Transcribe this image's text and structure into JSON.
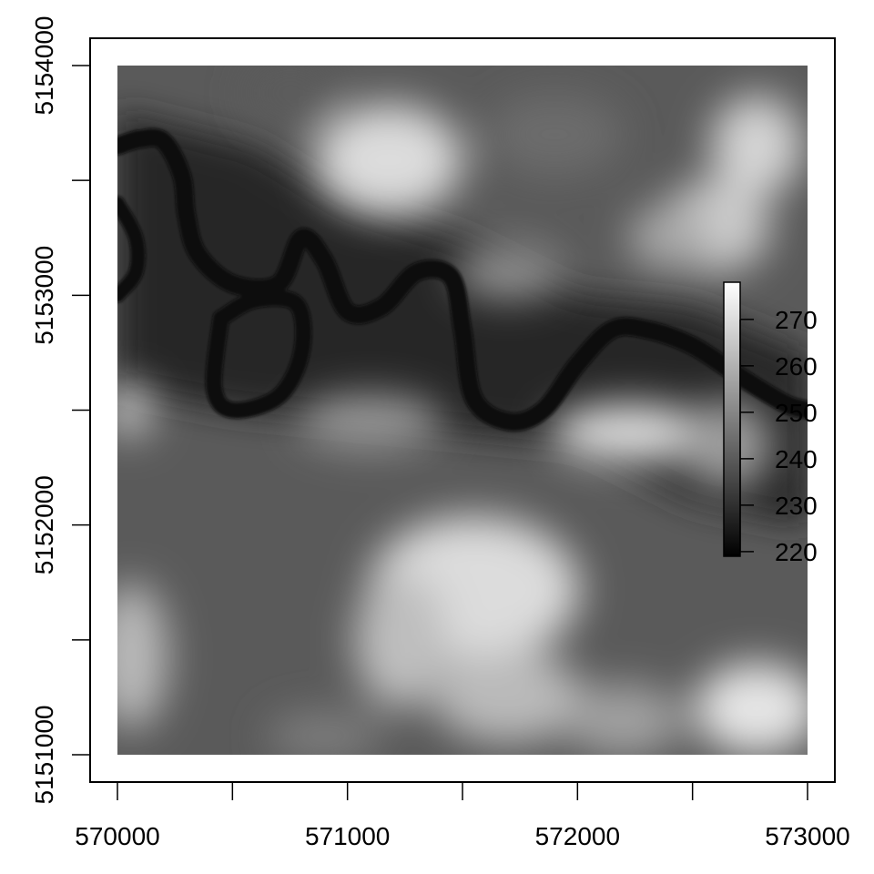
{
  "chart_data": {
    "type": "heatmap",
    "title": "",
    "xlabel": "",
    "ylabel": "",
    "xlim": [
      570000,
      573000
    ],
    "ylim": [
      5151000,
      5154000
    ],
    "x_ticks": [
      570000,
      570500,
      571000,
      571500,
      572000,
      572500,
      573000
    ],
    "x_tick_labels": [
      "570000",
      "",
      "571000",
      "",
      "572000",
      "",
      "573000"
    ],
    "y_ticks": [
      5151000,
      5151500,
      5152000,
      5152500,
      5153000,
      5153500,
      5154000
    ],
    "y_tick_labels": [
      "5151000",
      "",
      "5152000",
      "",
      "5153000",
      "",
      "5154000"
    ],
    "colorbar": {
      "range": [
        219,
        278
      ],
      "ticks": [
        220,
        230,
        240,
        250,
        260,
        270
      ],
      "tick_labels": [
        "220",
        "230",
        "240",
        "250",
        "260",
        "270"
      ],
      "low_color": "#000000",
      "high_color": "#ffffff"
    },
    "grid": false,
    "elevation_features": {
      "river_path": [
        [
          570000,
          5153650
        ],
        [
          570100,
          5153680
        ],
        [
          570200,
          5153670
        ],
        [
          570280,
          5153520
        ],
        [
          570300,
          5153350
        ],
        [
          570350,
          5153180
        ],
        [
          570500,
          5153050
        ],
        [
          570700,
          5153050
        ],
        [
          570800,
          5153250
        ],
        [
          570900,
          5153150
        ],
        [
          571000,
          5152930
        ],
        [
          571150,
          5152950
        ],
        [
          571300,
          5153100
        ],
        [
          571450,
          5153080
        ],
        [
          571500,
          5152850
        ],
        [
          571550,
          5152550
        ],
        [
          571700,
          5152450
        ],
        [
          571850,
          5152500
        ],
        [
          572000,
          5152700
        ],
        [
          572150,
          5152850
        ],
        [
          572300,
          5152850
        ],
        [
          572500,
          5152780
        ],
        [
          572700,
          5152650
        ],
        [
          572900,
          5152530
        ],
        [
          573000,
          5152500
        ]
      ],
      "oxbow_path": [
        [
          570450,
          5152900
        ],
        [
          570600,
          5152980
        ],
        [
          570780,
          5152960
        ],
        [
          570800,
          5152750
        ],
        [
          570700,
          5152560
        ],
        [
          570500,
          5152500
        ],
        [
          570420,
          5152600
        ],
        [
          570450,
          5152900
        ]
      ],
      "west_loop_path": [
        [
          570000,
          5153400
        ],
        [
          570080,
          5153250
        ],
        [
          570080,
          5153100
        ],
        [
          570000,
          5153000
        ]
      ],
      "valley_polygon": [
        [
          570000,
          5153800
        ],
        [
          570600,
          5153650
        ],
        [
          571000,
          5153400
        ],
        [
          571500,
          5153250
        ],
        [
          572000,
          5153000
        ],
        [
          572500,
          5152950
        ],
        [
          573000,
          5152750
        ],
        [
          573000,
          5152000
        ],
        [
          572500,
          5152100
        ],
        [
          572000,
          5152350
        ],
        [
          571500,
          5152400
        ],
        [
          571000,
          5152450
        ],
        [
          570500,
          5152500
        ],
        [
          570000,
          5152600
        ]
      ],
      "hills": [
        {
          "x": 571180,
          "y": 5153590,
          "rx": 320,
          "ry": 240,
          "value": 270
        },
        {
          "x": 572600,
          "y": 5153300,
          "rx": 240,
          "ry": 200,
          "value": 266
        },
        {
          "x": 572780,
          "y": 5153650,
          "rx": 200,
          "ry": 220,
          "value": 268
        },
        {
          "x": 572400,
          "y": 5153250,
          "rx": 180,
          "ry": 140,
          "value": 258
        },
        {
          "x": 571700,
          "y": 5153100,
          "rx": 240,
          "ry": 120,
          "value": 252
        },
        {
          "x": 571900,
          "y": 5153700,
          "rx": 300,
          "ry": 180,
          "value": 244
        },
        {
          "x": 572230,
          "y": 5152400,
          "rx": 350,
          "ry": 130,
          "value": 270
        },
        {
          "x": 572650,
          "y": 5152350,
          "rx": 200,
          "ry": 200,
          "value": 255
        },
        {
          "x": 571550,
          "y": 5151720,
          "rx": 460,
          "ry": 320,
          "value": 270
        },
        {
          "x": 571230,
          "y": 5151500,
          "rx": 200,
          "ry": 300,
          "value": 263
        },
        {
          "x": 571700,
          "y": 5151250,
          "rx": 330,
          "ry": 200,
          "value": 262
        },
        {
          "x": 571100,
          "y": 5152450,
          "rx": 320,
          "ry": 120,
          "value": 254
        },
        {
          "x": 570060,
          "y": 5151430,
          "rx": 160,
          "ry": 320,
          "value": 262
        },
        {
          "x": 570050,
          "y": 5152500,
          "rx": 100,
          "ry": 120,
          "value": 264
        },
        {
          "x": 572780,
          "y": 5151200,
          "rx": 270,
          "ry": 200,
          "value": 272
        },
        {
          "x": 572200,
          "y": 5151150,
          "rx": 260,
          "ry": 160,
          "value": 256
        },
        {
          "x": 570900,
          "y": 5151080,
          "rx": 250,
          "ry": 110,
          "value": 248
        },
        {
          "x": 570750,
          "y": 5153880,
          "rx": 200,
          "ry": 150,
          "value": 240
        }
      ]
    }
  }
}
